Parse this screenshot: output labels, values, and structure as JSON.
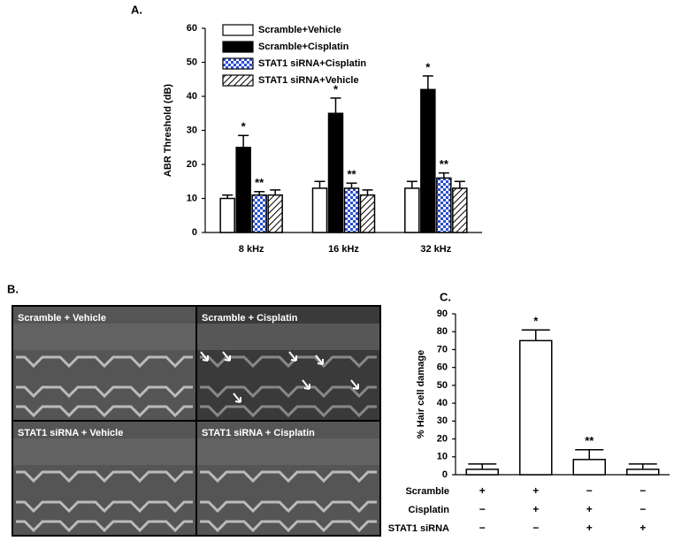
{
  "chart_data": [
    {
      "type": "bar",
      "title": "A.",
      "y_label": "ABR Threshold  (dB)",
      "categories": [
        "8 kHz",
        "16 kHz",
        "32 kHz"
      ],
      "series": [
        {
          "name": "Scramble+Vehicle",
          "color": "#ffffff",
          "pattern": "solid",
          "values": [
            10,
            13,
            13
          ],
          "errors": [
            1,
            2,
            2
          ],
          "annotations": [
            null,
            null,
            null
          ]
        },
        {
          "name": "Scramble+Cisplatin",
          "color": "#000000",
          "pattern": "solid",
          "values": [
            25,
            35,
            42
          ],
          "errors": [
            3.5,
            4.5,
            4
          ],
          "annotations": [
            "*",
            "*",
            "*"
          ]
        },
        {
          "name": "STAT1 siRNA+Cisplatin",
          "color": "#2a4fd0",
          "pattern": "checker",
          "values": [
            11,
            13,
            16
          ],
          "errors": [
            1,
            1.5,
            1.5
          ],
          "annotations": [
            "**",
            "**",
            "**"
          ]
        },
        {
          "name": "STAT1 siRNA+Vehicle",
          "color": "#000000",
          "pattern": "hatch",
          "values": [
            11,
            11,
            13
          ],
          "errors": [
            1.5,
            1.5,
            2
          ],
          "annotations": [
            null,
            null,
            null
          ]
        }
      ],
      "ylim": [
        0,
        60
      ],
      "yticks": [
        0,
        10,
        20,
        30,
        40,
        50,
        60
      ],
      "grid": false,
      "legend": "top-left"
    },
    {
      "type": "bar",
      "title": "C.",
      "y_label": "% Hair cell damage",
      "categories": [
        null,
        null,
        null,
        null
      ],
      "values": [
        3,
        75,
        8.5,
        3
      ],
      "errors": [
        3,
        6,
        5.5,
        3
      ],
      "annotations": [
        null,
        "*",
        "**",
        null
      ],
      "color": "#ffffff",
      "conditions": [
        {
          "name": "Scramble",
          "signs": [
            "+",
            "+",
            "−",
            "−"
          ]
        },
        {
          "name": "Cisplatin",
          "signs": [
            "−",
            "+",
            "+",
            "−"
          ]
        },
        {
          "name": "STAT1 siRNA",
          "signs": [
            "−",
            "−",
            "+",
            "+"
          ]
        }
      ],
      "ylim": [
        0,
        90
      ],
      "yticks": [
        0,
        10,
        20,
        30,
        40,
        50,
        60,
        70,
        80,
        90
      ],
      "grid": false
    }
  ],
  "figure": {
    "label": "B.",
    "panels": [
      "Scramble + Vehicle",
      "Scramble + Cisplatin",
      "STAT1 siRNA + Vehicle",
      "STAT1 siRNA + Cisplatin"
    ]
  }
}
